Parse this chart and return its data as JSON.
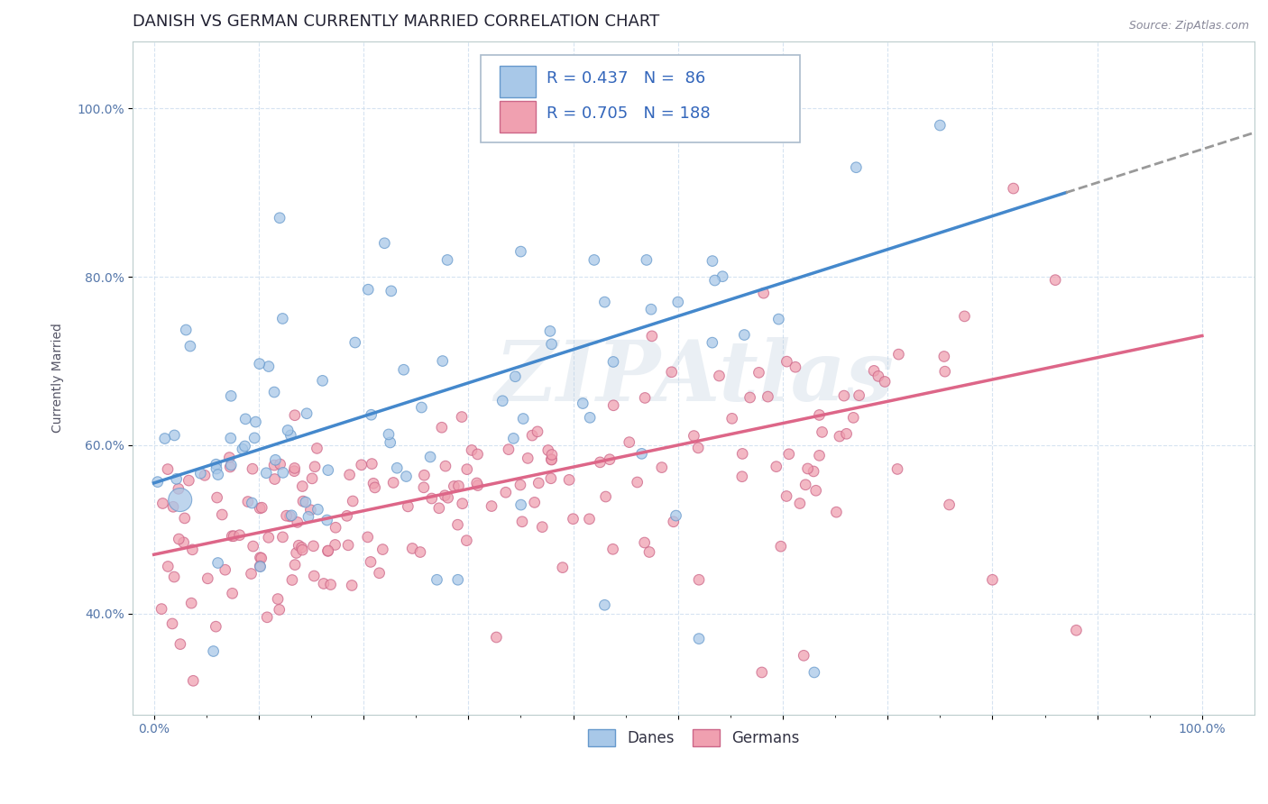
{
  "title": "DANISH VS GERMAN CURRENTLY MARRIED CORRELATION CHART",
  "source_text": "Source: ZipAtlas.com",
  "ylabel": "Currently Married",
  "xlim": [
    -0.02,
    1.05
  ],
  "ylim": [
    0.28,
    1.08
  ],
  "x_ticks": [
    0.0,
    0.1,
    0.2,
    0.3,
    0.4,
    0.5,
    0.6,
    0.7,
    0.8,
    0.9,
    1.0
  ],
  "x_tick_labels": [
    "0.0%",
    "",
    "",
    "",
    "",
    "",
    "",
    "",
    "",
    "",
    "100.0%"
  ],
  "y_ticks": [
    0.4,
    0.6,
    0.8,
    1.0
  ],
  "y_tick_labels": [
    "40.0%",
    "60.0%",
    "80.0%",
    "100.0%"
  ],
  "legend_labels": [
    "Danes",
    "Germans"
  ],
  "danes_color": "#A8C8E8",
  "danes_edge_color": "#6699CC",
  "germans_color": "#F0A0B0",
  "germans_edge_color": "#CC6688",
  "danes_R": 0.437,
  "danes_N": 86,
  "germans_R": 0.705,
  "germans_N": 188,
  "danes_line_color": "#4488CC",
  "danes_line_solid_end": 0.87,
  "danes_line_dash_start": 0.87,
  "danes_line_dash_end": 1.06,
  "germans_line_color": "#DD6688",
  "watermark_text": "ZIPAtlas",
  "title_fontsize": 13,
  "axis_label_fontsize": 10,
  "tick_fontsize": 10,
  "legend_fontsize": 12,
  "stats_fontsize": 13
}
